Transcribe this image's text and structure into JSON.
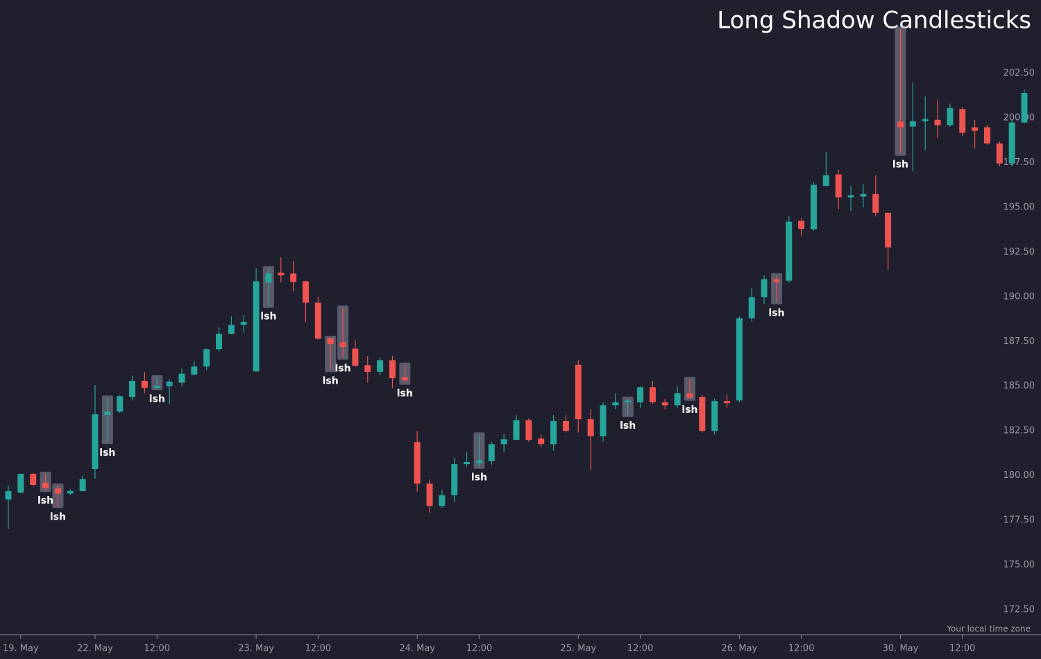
{
  "chart_data": {
    "type": "candlestick",
    "title": "Long Shadow Candlesticks",
    "footnote": "Your local time zone",
    "up_color": "#26a69a",
    "down_color": "#ef5350",
    "categories": [
      null,
      "19. May",
      null,
      null,
      null,
      null,
      null,
      "22. May",
      null,
      null,
      null,
      null,
      "12:00",
      null,
      null,
      null,
      null,
      null,
      null,
      null,
      "23. May",
      null,
      null,
      null,
      null,
      "12:00",
      null,
      null,
      null,
      null,
      null,
      null,
      null,
      "24. May",
      null,
      null,
      null,
      null,
      "12:00",
      null,
      null,
      null,
      null,
      null,
      null,
      null,
      "25. May",
      null,
      null,
      null,
      null,
      "12:00",
      null,
      null,
      null,
      null,
      null,
      null,
      null,
      "26. May",
      null,
      null,
      null,
      null,
      "12:00",
      null,
      null,
      null,
      null,
      null,
      null,
      null,
      "30. May",
      null,
      null,
      null,
      null,
      "12:00",
      null,
      null,
      null,
      null,
      null
    ],
    "open": [
      178.66,
      179.05,
      180.1,
      179.6,
      179.28,
      179.0,
      179.13,
      180.37,
      183.4,
      183.58,
      184.4,
      185.3,
      184.9,
      185.0,
      185.2,
      185.65,
      186.1,
      187.07,
      187.93,
      188.43,
      185.83,
      190.8,
      191.35,
      191.3,
      190.87,
      189.67,
      187.7,
      187.46,
      187.1,
      186.18,
      185.8,
      186.45,
      185.5,
      181.88,
      179.55,
      178.3,
      178.9,
      180.64,
      180.7,
      180.8,
      181.76,
      182.0,
      183.1,
      182.07,
      181.76,
      183.05,
      186.2,
      183.16,
      182.2,
      183.93,
      184.1,
      184.1,
      184.94,
      184.1,
      183.93,
      184.6,
      184.4,
      182.5,
      184.17,
      184.2,
      188.8,
      189.98,
      190.99,
      190.9,
      194.25,
      193.78,
      196.2,
      196.84,
      195.56,
      195.6,
      195.75,
      194.7,
      199.8,
      199.52,
      199.82,
      199.9,
      199.6,
      200.5,
      199.48,
      199.48,
      198.58,
      197.46,
      199.75
    ],
    "high": [
      179.44,
      180.1,
      180.15,
      180.1,
      179.44,
      179.25,
      180.0,
      185.06,
      184.36,
      184.5,
      185.6,
      185.8,
      185.5,
      185.4,
      186.0,
      186.4,
      187.1,
      188.3,
      188.9,
      189.0,
      191.6,
      191.6,
      192.2,
      192.0,
      190.9,
      190.0,
      187.7,
      189.4,
      187.6,
      186.7,
      186.6,
      186.7,
      186.2,
      182.5,
      179.8,
      179.2,
      181.0,
      181.3,
      182.3,
      181.9,
      182.3,
      183.4,
      183.2,
      182.3,
      183.4,
      183.4,
      186.45,
      183.7,
      184.1,
      184.6,
      184.3,
      185.0,
      185.3,
      184.3,
      185.0,
      185.4,
      184.5,
      184.3,
      184.55,
      188.9,
      190.5,
      191.2,
      191.2,
      194.5,
      194.4,
      196.4,
      198.1,
      197.1,
      196.2,
      196.3,
      196.8,
      194.7,
      205.0,
      202.0,
      201.2,
      201.0,
      200.8,
      200.6,
      199.9,
      199.6,
      198.7,
      199.9,
      201.6
    ],
    "low": [
      177.0,
      179.0,
      179.4,
      179.2,
      178.3,
      178.9,
      179.1,
      179.83,
      181.88,
      183.5,
      184.2,
      184.6,
      184.9,
      184.0,
      185.0,
      185.6,
      185.9,
      186.9,
      187.9,
      188.0,
      185.8,
      189.5,
      190.8,
      190.3,
      188.6,
      187.6,
      185.9,
      186.6,
      186.1,
      185.2,
      185.6,
      184.9,
      185.2,
      179.1,
      177.9,
      178.2,
      178.5,
      180.5,
      180.5,
      180.6,
      181.3,
      182.0,
      181.9,
      181.6,
      181.4,
      182.4,
      182.4,
      180.3,
      181.9,
      183.7,
      183.4,
      183.8,
      184.0,
      183.7,
      183.8,
      184.3,
      182.4,
      182.3,
      183.8,
      184.1,
      188.6,
      189.6,
      189.7,
      190.8,
      193.4,
      193.7,
      196.2,
      194.9,
      194.8,
      195.0,
      194.5,
      191.5,
      198.0,
      197.0,
      198.2,
      198.9,
      199.5,
      199.0,
      198.3,
      198.5,
      197.3,
      197.3,
      199.7
    ],
    "close": [
      179.13,
      180.1,
      179.48,
      179.3,
      179.0,
      179.13,
      179.8,
      183.43,
      183.58,
      184.44,
      185.3,
      184.9,
      185.02,
      185.25,
      185.7,
      186.1,
      187.07,
      187.93,
      188.43,
      188.6,
      190.87,
      191.3,
      191.2,
      190.83,
      189.67,
      187.66,
      187.35,
      187.2,
      186.14,
      185.8,
      186.45,
      185.45,
      185.33,
      179.55,
      178.3,
      178.9,
      180.64,
      180.76,
      180.86,
      181.76,
      182.03,
      183.1,
      182.0,
      181.76,
      183.05,
      182.5,
      183.16,
      182.2,
      183.93,
      184.1,
      184.2,
      184.94,
      184.1,
      183.93,
      184.6,
      184.36,
      182.5,
      184.17,
      184.05,
      188.8,
      189.98,
      190.99,
      190.83,
      194.2,
      193.8,
      196.26,
      196.8,
      195.56,
      195.68,
      195.75,
      194.7,
      192.77,
      199.48,
      199.82,
      199.94,
      199.6,
      200.56,
      199.17,
      199.28,
      198.58,
      197.46,
      199.75,
      201.4
    ],
    "annotations": {
      "label": "lsh",
      "indices": [
        3,
        4,
        8,
        12,
        21,
        26,
        27,
        32,
        38,
        50,
        55,
        62,
        72
      ]
    },
    "ylim": [
      171.1,
      206.6
    ],
    "yticks": [
      {
        "value": 172.5,
        "label": "172.50"
      },
      {
        "value": 175,
        "label": "175.00"
      },
      {
        "value": 177.5,
        "label": "177.50"
      },
      {
        "value": 180,
        "label": "180.00"
      },
      {
        "value": 182.5,
        "label": "182.50"
      },
      {
        "value": 185,
        "label": "185.00"
      },
      {
        "value": 187.5,
        "label": "187.50"
      },
      {
        "value": 190,
        "label": "190.00"
      },
      {
        "value": 192.5,
        "label": "192.50"
      },
      {
        "value": 195,
        "label": "195.00"
      },
      {
        "value": 197.5,
        "label": "197.50"
      },
      {
        "value": 200,
        "label": "200.00"
      },
      {
        "value": 202.5,
        "label": "202.50"
      }
    ]
  }
}
